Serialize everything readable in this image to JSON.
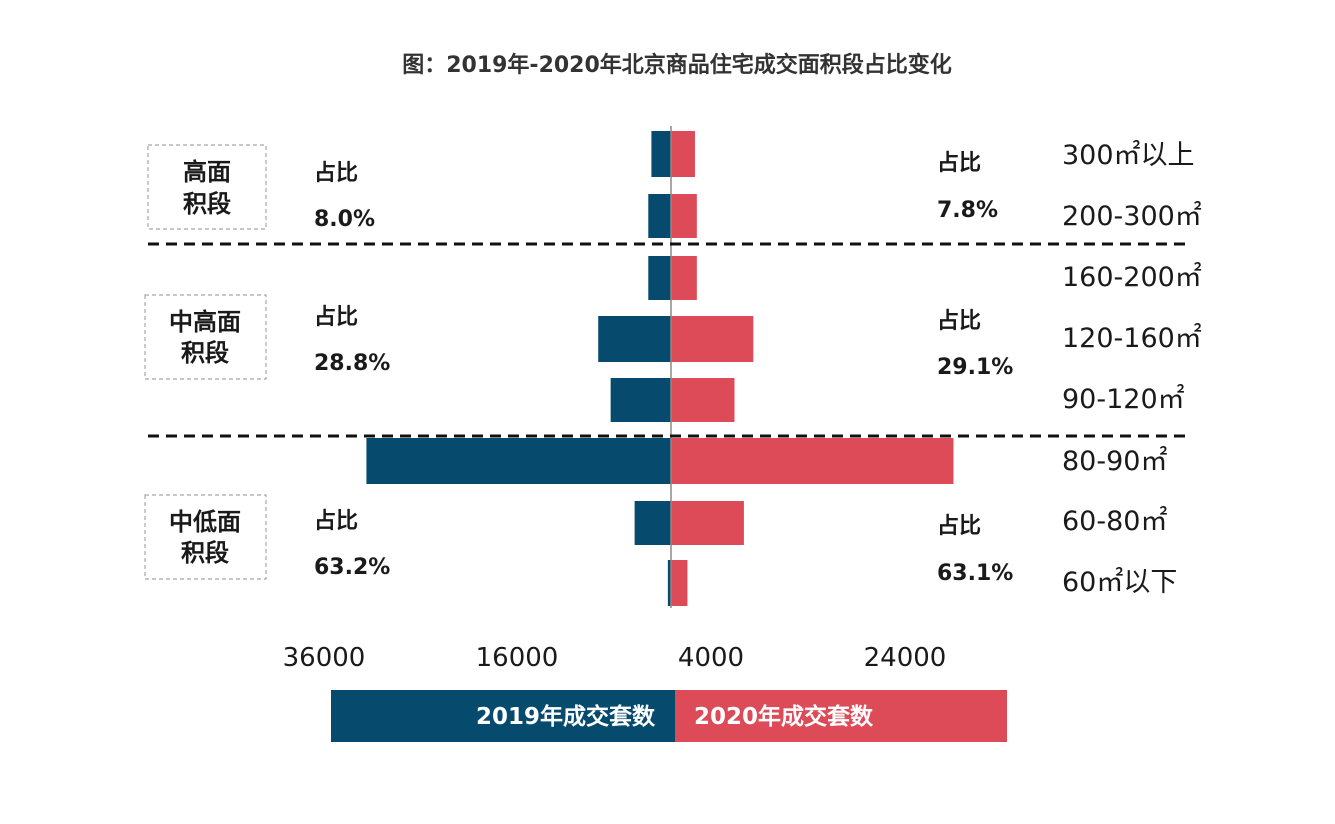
{
  "chart_data": {
    "type": "bar",
    "title": "图：2019年-2020年北京商品住宅成交面积段占比变化",
    "categories": [
      "300㎡以上",
      "200-300㎡",
      "160-200㎡",
      "120-160㎡",
      "90-120㎡",
      "80-90㎡",
      "60-80㎡",
      "60㎡以下"
    ],
    "series": [
      {
        "name": "2019年成交套数",
        "color": "#064a6e",
        "values": [
          1560,
          1810,
          1810,
          5800,
          4810,
          24270,
          2900,
          250
        ]
      },
      {
        "name": "2020年成交套数",
        "color": "#dd4b58",
        "values": [
          1910,
          2060,
          2060,
          6560,
          5060,
          22510,
          5810,
          1310
        ]
      }
    ],
    "x_ticks": [
      "36000",
      "16000",
      "4000",
      "24000"
    ],
    "segments": [
      {
        "label_lines": [
          "高面",
          "积段"
        ],
        "share_label": "占比",
        "share_2019": "8.0%",
        "share_2020": "7.8%"
      },
      {
        "label_lines": [
          "中高面",
          "积段"
        ],
        "share_label": "占比",
        "share_2019": "28.8%",
        "share_2020": "29.1%"
      },
      {
        "label_lines": [
          "中低面",
          "积段"
        ],
        "share_label": "占比",
        "share_2019": "63.2%",
        "share_2020": "63.1%"
      }
    ],
    "legend_placement": "bottom",
    "grid": false
  }
}
